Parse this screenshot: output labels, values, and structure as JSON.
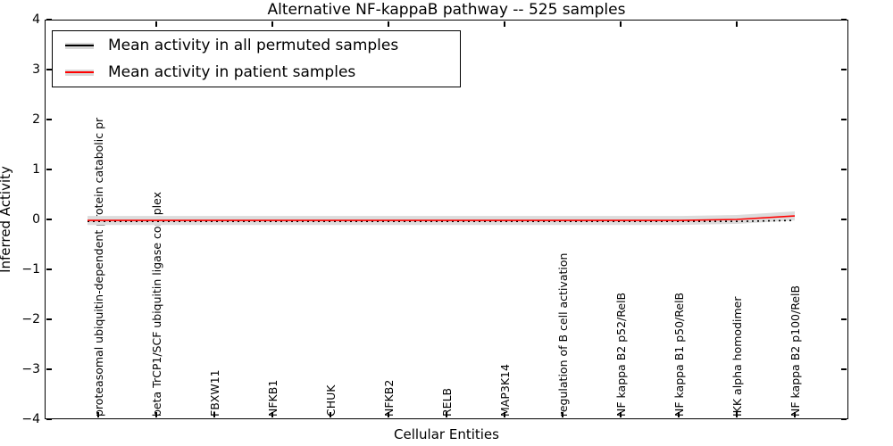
{
  "title": "Alternative NF-kappaB pathway -- 525 samples",
  "axes": {
    "xlabel": "Cellular Entities",
    "ylabel": "Inferred Activity",
    "ytick_labels": [
      "4",
      "3",
      "2",
      "1",
      "0",
      "−1",
      "−2",
      "−3",
      "−4"
    ]
  },
  "legend": {
    "items": [
      {
        "label": "Mean activity in all permuted samples",
        "color": "#000000"
      },
      {
        "label": "Mean activity in patient samples",
        "color": "#ff0000"
      }
    ]
  },
  "chart_data": {
    "type": "line",
    "title": "Alternative NF-kappaB pathway -- 525 samples",
    "xlabel": "Cellular Entities",
    "ylabel": "Inferred Activity",
    "ylim": [
      -4,
      4
    ],
    "yticks": [
      4,
      3,
      2,
      1,
      0,
      -1,
      -2,
      -3,
      -4
    ],
    "grid": false,
    "legend_position": "upper left",
    "categories": [
      "proteasomal ubiquitin-dependent protein catabolic pr",
      "beta TrCP1/SCF ubiquitin ligase complex",
      "FBXW11",
      "NFKB1",
      "CHUK",
      "NFKB2",
      "RELB",
      "MAP3K14",
      "regulation of B cell activation",
      "NF kappa B2 p52/RelB",
      "NF kappa B1 p50/RelB",
      "IKK alpha homodimer",
      "NF kappa B2 p100/RelB"
    ],
    "series": [
      {
        "name": "Mean activity in all permuted samples",
        "color": "#000000",
        "style": "dotted",
        "values": [
          -0.04,
          -0.04,
          -0.04,
          -0.04,
          -0.04,
          -0.04,
          -0.04,
          -0.04,
          -0.04,
          -0.04,
          -0.04,
          -0.04,
          -0.02
        ]
      },
      {
        "name": "Mean activity in patient samples",
        "color": "#ff0000",
        "style": "solid",
        "values": [
          -0.02,
          -0.02,
          -0.02,
          -0.02,
          -0.02,
          -0.02,
          -0.02,
          -0.02,
          -0.02,
          -0.02,
          -0.02,
          0.0,
          0.07
        ]
      }
    ],
    "band": {
      "around_series": "Mean activity in patient samples",
      "half_width": 0.09,
      "color": "#dcdcdc"
    }
  }
}
